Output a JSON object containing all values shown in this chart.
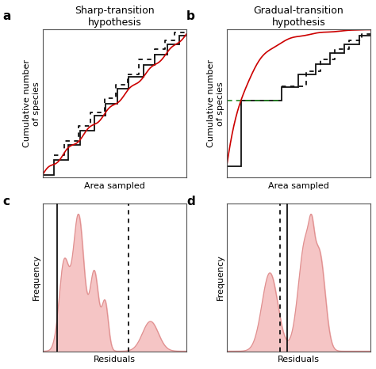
{
  "panel_a_title": "Sharp-transition\nhypothesis",
  "panel_b_title": "Gradual-transition\nhypothesis",
  "ylabel_top": "Cumulative number\nof species",
  "ylabel_bottom": "Frequency",
  "xlabel_top": "Area sampled",
  "xlabel_bottom": "Residuals",
  "panel_labels": [
    "a",
    "b",
    "c",
    "d"
  ],
  "bg_color": "#ffffff",
  "line_color_red": "#cc0000",
  "line_color_black": "#111111",
  "line_color_green": "#228822",
  "fill_color": "#f5c5c5",
  "fill_alpha": 1.0,
  "fill_edge_color": "#e09090"
}
